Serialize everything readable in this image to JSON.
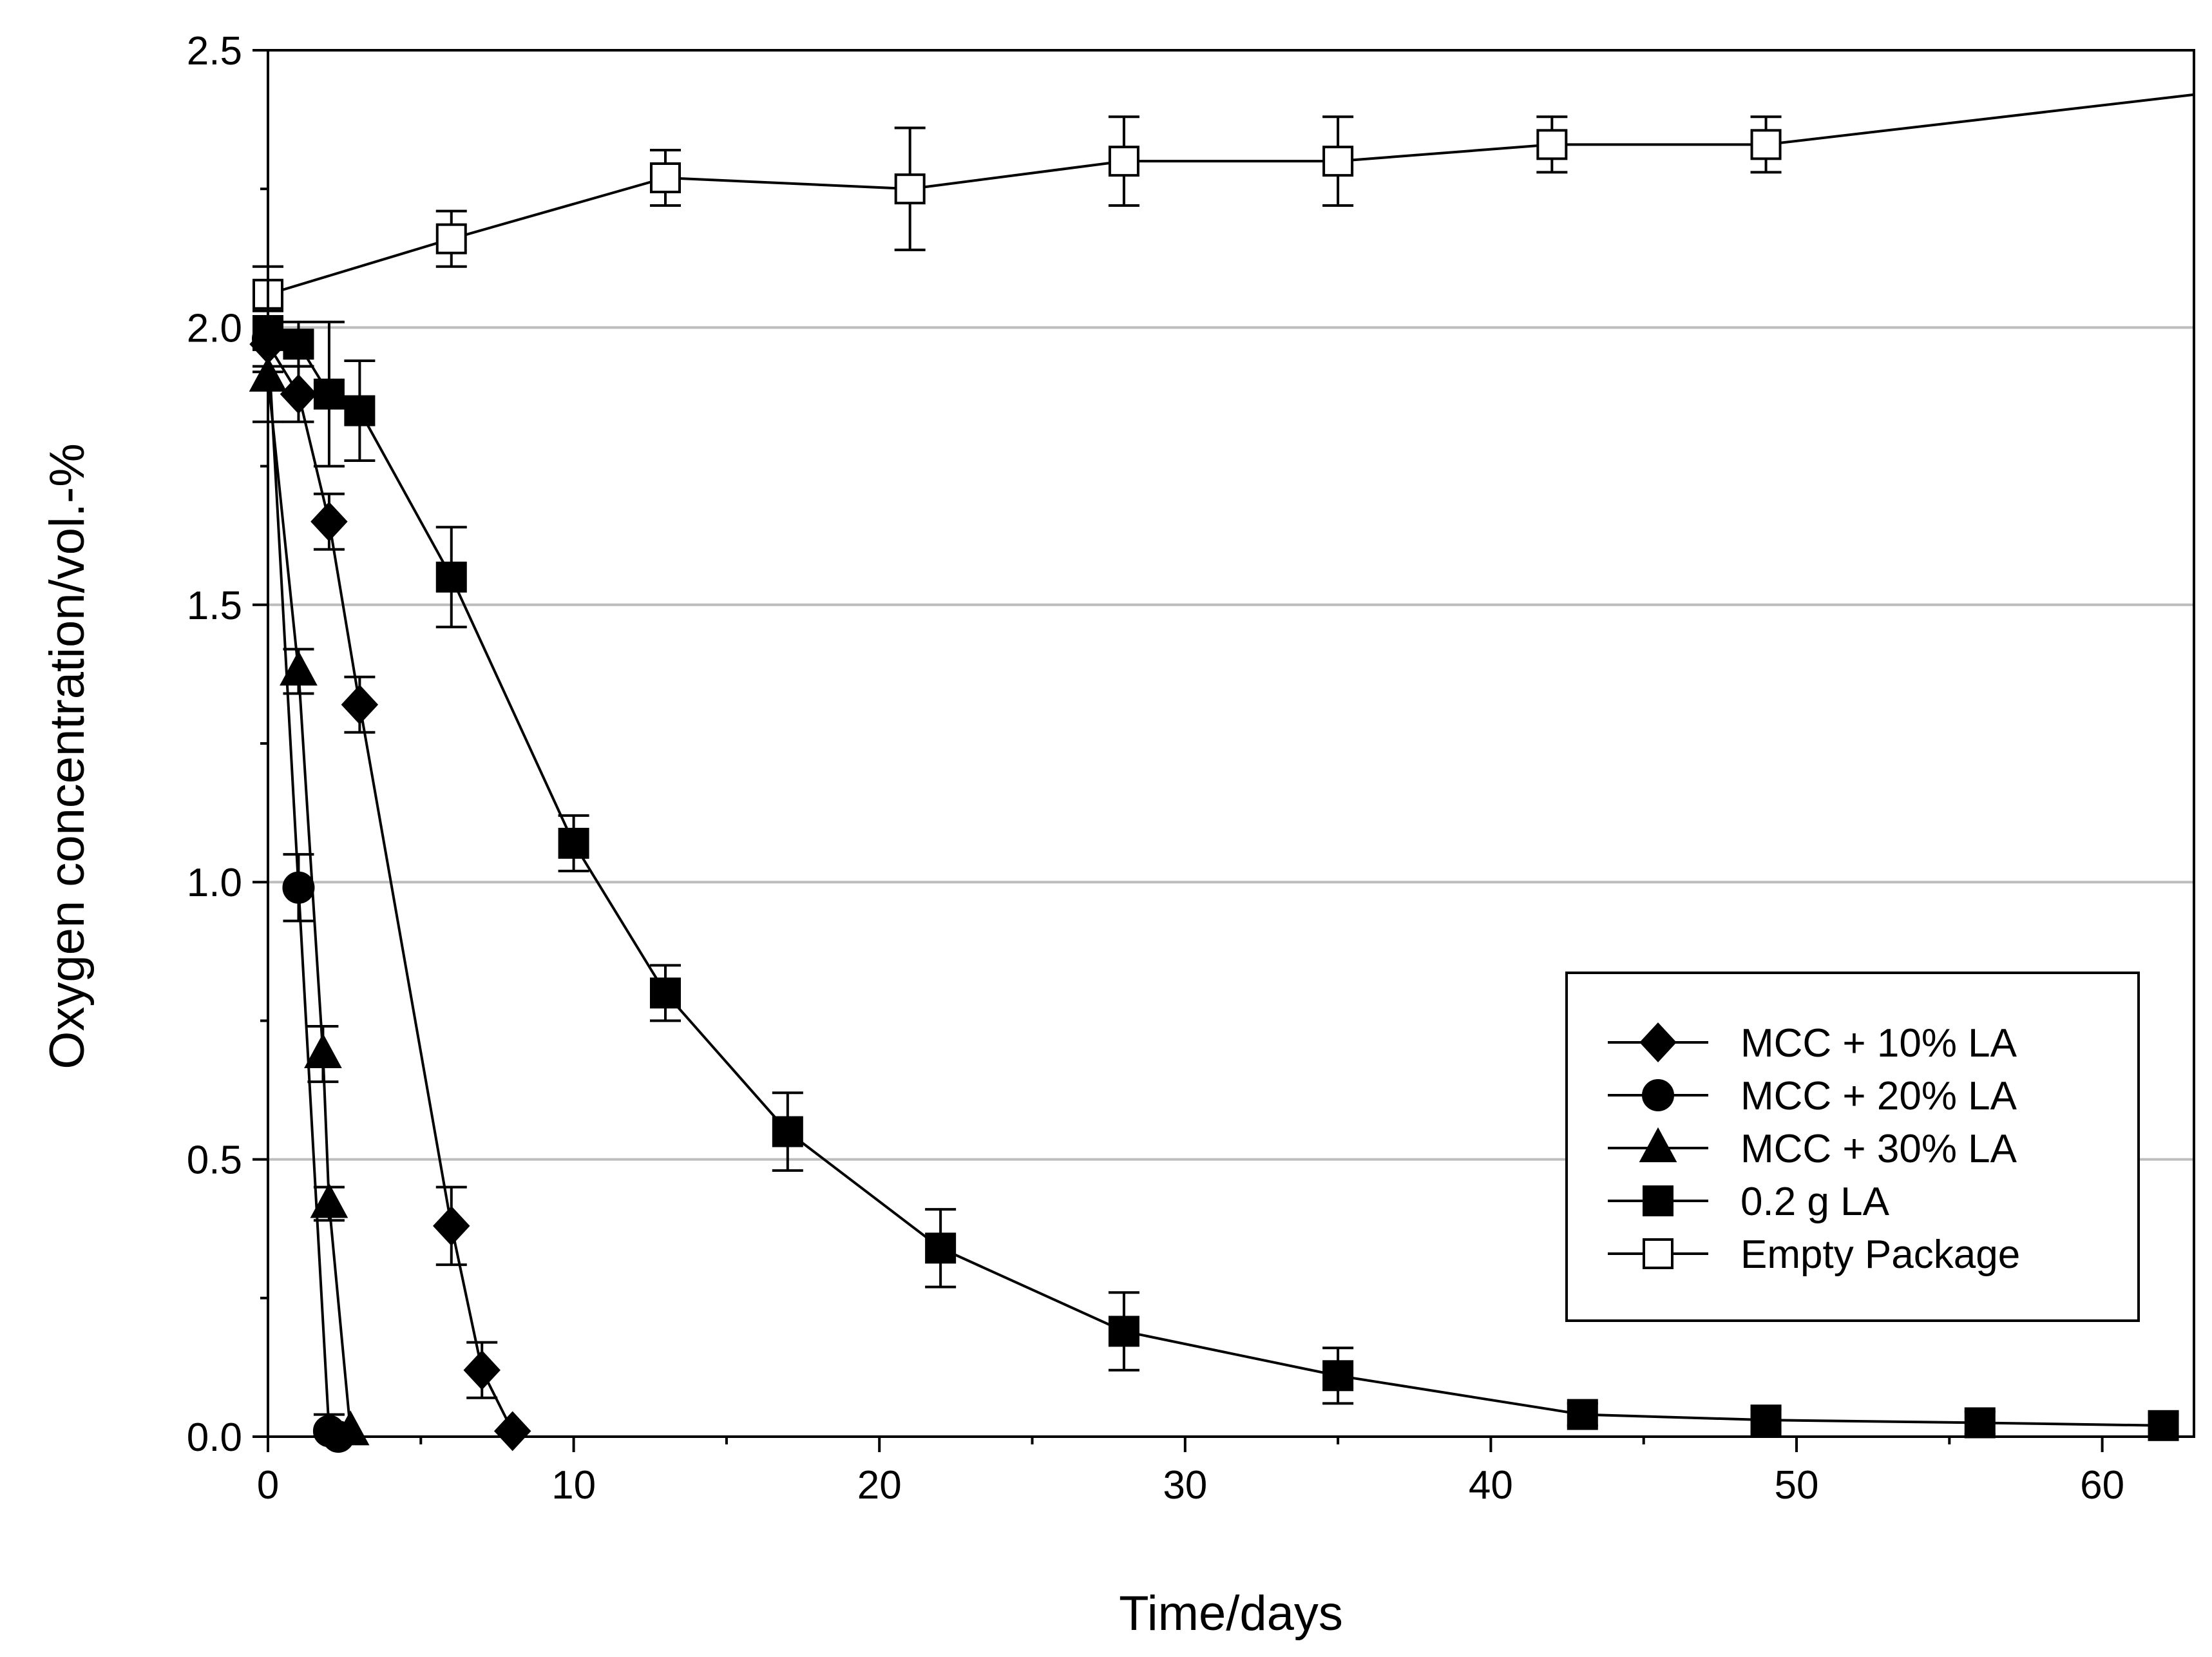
{
  "chart_data": {
    "type": "line",
    "title": "",
    "xlabel": "Time/days",
    "ylabel": "Oxygen concentration/vol.-%",
    "xlim": [
      0,
      63
    ],
    "ylim": [
      0,
      2.5
    ],
    "x_ticks": [
      "0",
      "10",
      "20",
      "30",
      "40",
      "50",
      "60"
    ],
    "y_ticks": [
      "0.0",
      "0.5",
      "1.0",
      "1.5",
      "2.0",
      "2.5"
    ],
    "grid": "horizontal",
    "legend_position": "bottom-right",
    "series": [
      {
        "name": "MCC + 10% LA",
        "marker": "diamond",
        "fill": "#000000",
        "points": [
          {
            "x": 0,
            "y": 1.97,
            "err": 0.05
          },
          {
            "x": 1,
            "y": 1.88,
            "err": 0.05
          },
          {
            "x": 2,
            "y": 1.65,
            "err": 0.05
          },
          {
            "x": 3,
            "y": 1.32,
            "err": 0.05
          },
          {
            "x": 6,
            "y": 0.38,
            "err": 0.07
          },
          {
            "x": 7,
            "y": 0.12,
            "err": 0.05
          },
          {
            "x": 8,
            "y": 0.01,
            "err": 0.0
          }
        ]
      },
      {
        "name": "MCC + 20% LA",
        "marker": "circle",
        "fill": "#000000",
        "points": [
          {
            "x": 0,
            "y": 1.98,
            "err": 0.05
          },
          {
            "x": 1,
            "y": 0.99,
            "err": 0.06
          },
          {
            "x": 2,
            "y": 0.01,
            "err": 0.03
          },
          {
            "x": 2.3,
            "y": 0.0,
            "err": 0.0
          }
        ]
      },
      {
        "name": "MCC + 30% LA",
        "marker": "triangle",
        "fill": "#000000",
        "points": [
          {
            "x": 0,
            "y": 1.91,
            "err": 0.08
          },
          {
            "x": 1,
            "y": 1.38,
            "err": 0.04
          },
          {
            "x": 1.8,
            "y": 0.69,
            "err": 0.05
          },
          {
            "x": 2,
            "y": 0.42,
            "err": 0.03
          },
          {
            "x": 2.7,
            "y": 0.01,
            "err": 0.0
          }
        ]
      },
      {
        "name": "0.2 g LA",
        "marker": "square",
        "fill": "#000000",
        "points": [
          {
            "x": 0,
            "y": 1.99,
            "err": 0.03
          },
          {
            "x": 1,
            "y": 1.97,
            "err": 0.04
          },
          {
            "x": 2,
            "y": 1.88,
            "err": 0.13
          },
          {
            "x": 3,
            "y": 1.85,
            "err": 0.09
          },
          {
            "x": 6,
            "y": 1.55,
            "err": 0.09
          },
          {
            "x": 10,
            "y": 1.07,
            "err": 0.05
          },
          {
            "x": 13,
            "y": 0.8,
            "err": 0.05
          },
          {
            "x": 17,
            "y": 0.55,
            "err": 0.07
          },
          {
            "x": 22,
            "y": 0.34,
            "err": 0.07
          },
          {
            "x": 28,
            "y": 0.19,
            "err": 0.07
          },
          {
            "x": 35,
            "y": 0.11,
            "err": 0.05
          },
          {
            "x": 43,
            "y": 0.04,
            "err": 0.02
          },
          {
            "x": 49,
            "y": 0.03,
            "err": 0.02
          },
          {
            "x": 56,
            "y": 0.025,
            "err": 0.02
          },
          {
            "x": 62,
            "y": 0.02,
            "err": 0.02
          }
        ]
      },
      {
        "name": "Empty Package",
        "marker": "square",
        "fill": "#ffffff",
        "points": [
          {
            "x": 0,
            "y": 2.06,
            "err": 0.05
          },
          {
            "x": 6,
            "y": 2.16,
            "err": 0.05
          },
          {
            "x": 13,
            "y": 2.27,
            "err": 0.05
          },
          {
            "x": 21,
            "y": 2.25,
            "err": 0.11
          },
          {
            "x": 28,
            "y": 2.3,
            "err": 0.08
          },
          {
            "x": 35,
            "y": 2.3,
            "err": 0.08
          },
          {
            "x": 42,
            "y": 2.33,
            "err": 0.05
          },
          {
            "x": 49,
            "y": 2.33,
            "err": 0.05
          },
          {
            "x": 63,
            "y": 2.42,
            "err": 0.0
          }
        ]
      }
    ]
  }
}
